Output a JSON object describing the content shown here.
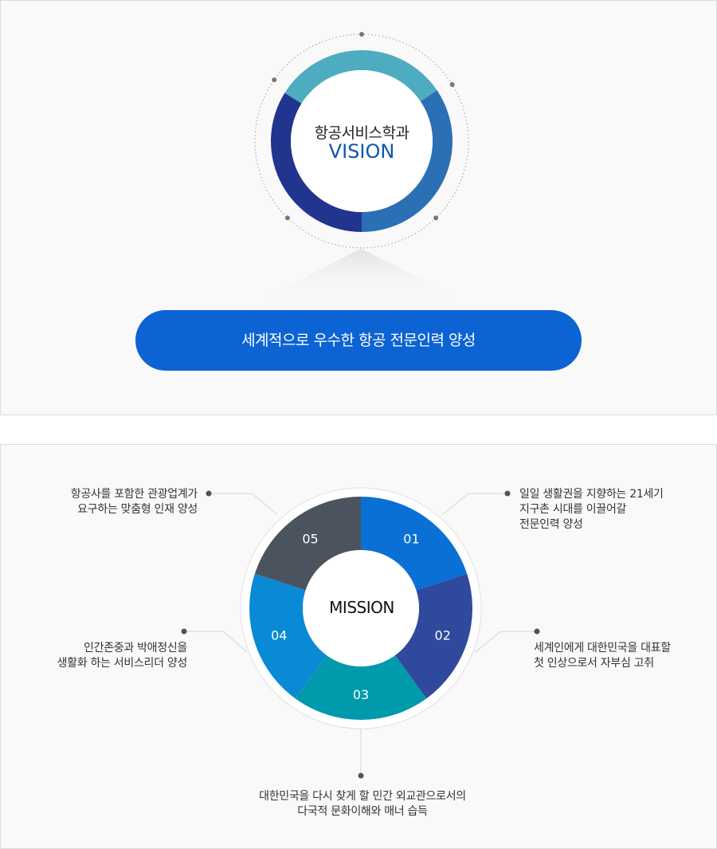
{
  "vision": {
    "department": "항공서비스학과",
    "label": "VISION",
    "statement": "세계적으로 우수한 항공 전문인력 양성",
    "ring_colors": [
      "#4eacc0",
      "#2b70b4",
      "#21358e"
    ],
    "accent": "#0c63d3"
  },
  "mission": {
    "label": "MISSION",
    "segments": [
      {
        "number": "01",
        "color": "#0a70d6",
        "text": [
          "일일 생활권을 지향하는 21세기",
          "지구촌 시대를 이끌어갈",
          "전문인력 양성"
        ]
      },
      {
        "number": "02",
        "color": "#2f4a9c",
        "text": [
          "세계인에게 대한민국을 대표할",
          "첫 인상으로서 자부심 고취"
        ]
      },
      {
        "number": "03",
        "color": "#019aac",
        "text": [
          "대한민국을 다시 찾게 할 민간 외교관으로서의",
          "다국적 문화이해와 매너 습득"
        ]
      },
      {
        "number": "04",
        "color": "#0a8ad5",
        "text": [
          "인간존중과 박애정신을",
          "생활화 하는 서비스리더 양성"
        ]
      },
      {
        "number": "05",
        "color": "#4b545e",
        "text": [
          "항공사를 포함한 관광업계가",
          "요구하는 맞춤형 인재 양성"
        ]
      }
    ]
  }
}
